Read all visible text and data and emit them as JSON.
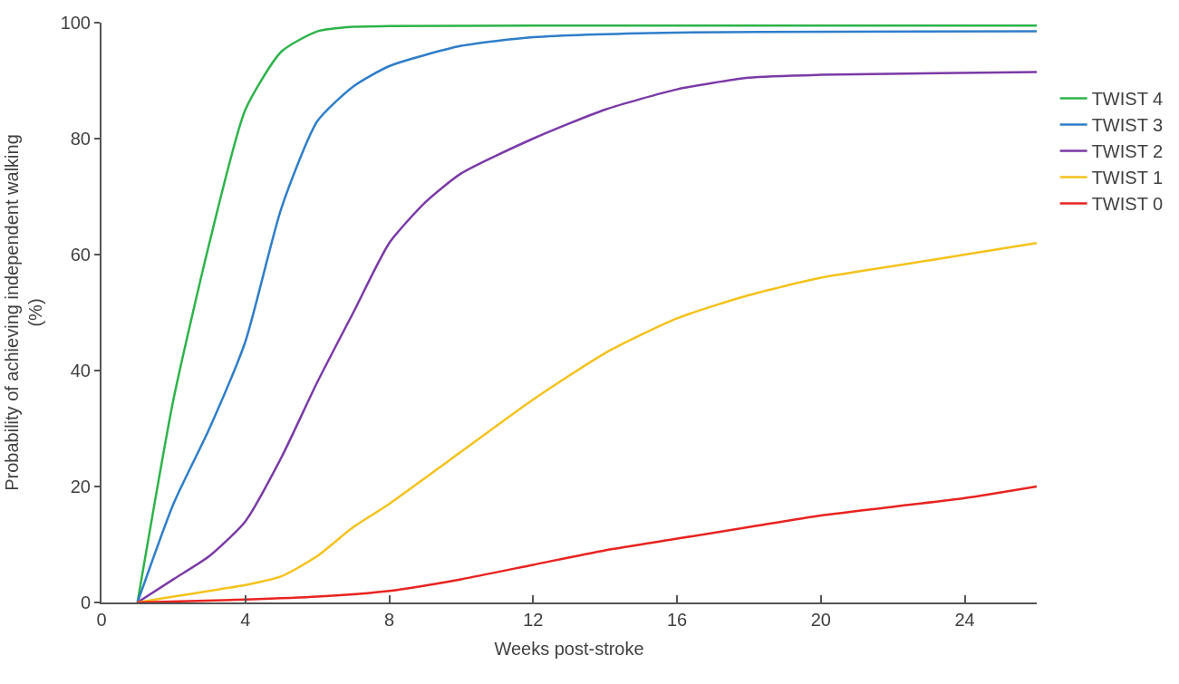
{
  "chart_data": {
    "type": "line",
    "xlabel": "Weeks post-stroke",
    "ylabel": "Probability of achieving independent walking\n(%)",
    "xlim": [
      0,
      26
    ],
    "xticks": [
      0,
      4,
      8,
      12,
      16,
      20,
      24
    ],
    "ylim": [
      0,
      100
    ],
    "yticks": [
      0,
      20,
      40,
      60,
      80,
      100
    ],
    "legend": "right",
    "marker": "none",
    "line_style": "solid",
    "series": [
      {
        "name": "TWIST 4",
        "color": "#2db34a",
        "x": [
          1,
          2,
          3,
          4,
          5,
          6,
          7,
          8,
          12,
          26
        ],
        "values": [
          0,
          35,
          62,
          85,
          95,
          98.5,
          99.3,
          99.4,
          99.5,
          99.5
        ]
      },
      {
        "name": "TWIST 3",
        "color": "#2f7ec9",
        "x": [
          1,
          2,
          3,
          4,
          5,
          6,
          7,
          8,
          10,
          12,
          16,
          26
        ],
        "values": [
          0,
          17,
          30,
          45,
          68,
          83,
          89,
          92.5,
          96,
          97.5,
          98.3,
          98.5
        ]
      },
      {
        "name": "TWIST 2",
        "color": "#7b3aa6",
        "x": [
          1,
          2,
          3,
          4,
          5,
          6,
          7,
          8,
          9,
          10,
          12,
          14,
          16,
          18,
          20,
          26
        ],
        "values": [
          0,
          4,
          8,
          14,
          25,
          38,
          50,
          62,
          69,
          74,
          80,
          85,
          88.5,
          90.5,
          91,
          91.5
        ]
      },
      {
        "name": "TWIST 1",
        "color": "#f5c21b",
        "x": [
          1,
          2,
          3,
          4,
          5,
          6,
          7,
          8,
          10,
          12,
          14,
          16,
          18,
          20,
          22,
          24,
          26
        ],
        "values": [
          0,
          1,
          2,
          3,
          4.5,
          8,
          13,
          17,
          26,
          35,
          43,
          49,
          53,
          56,
          58,
          60,
          62
        ]
      },
      {
        "name": "TWIST 0",
        "color": "#e8231f",
        "x": [
          1,
          4,
          6,
          8,
          10,
          12,
          14,
          16,
          18,
          20,
          22,
          24,
          26
        ],
        "values": [
          0,
          0.5,
          1,
          2,
          4,
          6.5,
          9,
          11,
          13,
          15,
          16.5,
          18,
          20
        ]
      }
    ]
  }
}
